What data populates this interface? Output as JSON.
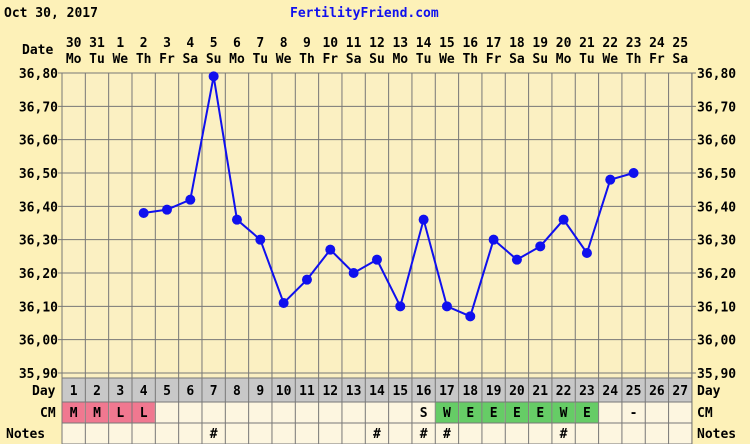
{
  "header": {
    "date": "Oct 30, 2017",
    "site": "FertilityFriend.com"
  },
  "labels": {
    "date": "Date",
    "day": "Day",
    "cm": "CM",
    "notes": "Notes"
  },
  "colors": {
    "line": "#1010ee",
    "menstrual": "#f07890",
    "fertile": "#66cc66",
    "grid_bg": "#fbf0c2",
    "row_bg": "#fdf6e0",
    "day_row": "#c8c8c8"
  },
  "chart_data": {
    "type": "line",
    "ylim": [
      35.9,
      36.8
    ],
    "yticks": [
      "36,80",
      "36,70",
      "36,60",
      "36,50",
      "36,40",
      "36,30",
      "36,20",
      "36,10",
      "36,00",
      "35,90"
    ],
    "dates": [
      "30",
      "31",
      "1",
      "2",
      "3",
      "4",
      "5",
      "6",
      "7",
      "8",
      "9",
      "10",
      "11",
      "12",
      "13",
      "14",
      "15",
      "16",
      "17",
      "18",
      "19",
      "20",
      "21",
      "22",
      "23",
      "24",
      "25"
    ],
    "weekdays": [
      "Mo",
      "Tu",
      "We",
      "Th",
      "Fr",
      "Sa",
      "Su",
      "Mo",
      "Tu",
      "We",
      "Th",
      "Fr",
      "Sa",
      "Su",
      "Mo",
      "Tu",
      "We",
      "Th",
      "Fr",
      "Sa",
      "Su",
      "Mo",
      "Tu",
      "We",
      "Th",
      "Fr",
      "Sa"
    ],
    "days": [
      1,
      2,
      3,
      4,
      5,
      6,
      7,
      8,
      9,
      10,
      11,
      12,
      13,
      14,
      15,
      16,
      17,
      18,
      19,
      20,
      21,
      22,
      23,
      24,
      25,
      26,
      27
    ],
    "temperatures": [
      null,
      null,
      null,
      36.38,
      36.39,
      36.42,
      36.79,
      36.36,
      36.3,
      36.11,
      36.18,
      36.27,
      36.2,
      36.24,
      36.1,
      36.36,
      36.1,
      36.07,
      36.3,
      36.24,
      36.28,
      36.36,
      36.26,
      36.48,
      36.5,
      null,
      null
    ],
    "cm": [
      "M",
      "M",
      "L",
      "L",
      "",
      "",
      "",
      "",
      "",
      "",
      "",
      "",
      "",
      "",
      "",
      "S",
      "W",
      "E",
      "E",
      "E",
      "E",
      "W",
      "E",
      "",
      "-",
      "",
      ""
    ],
    "cm_color": [
      "menstrual",
      "menstrual",
      "menstrual",
      "menstrual",
      "",
      "",
      "",
      "",
      "",
      "",
      "",
      "",
      "",
      "",
      "",
      "",
      "fertile",
      "fertile",
      "fertile",
      "fertile",
      "fertile",
      "fertile",
      "fertile",
      "",
      "",
      "",
      ""
    ],
    "notes": [
      "",
      "",
      "",
      "",
      "",
      "",
      "#",
      "",
      "",
      "",
      "",
      "",
      "",
      "#",
      "",
      "#",
      "#",
      "",
      "",
      "",
      "",
      "#",
      "",
      "",
      "",
      "",
      ""
    ]
  }
}
